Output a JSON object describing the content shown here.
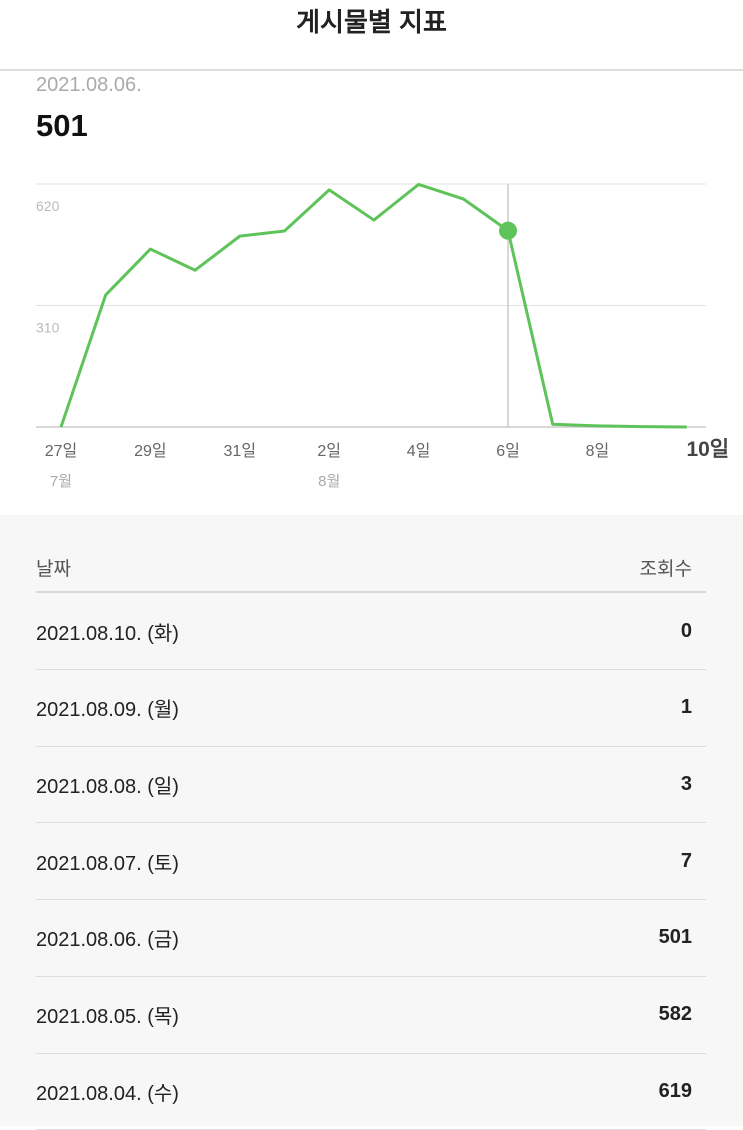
{
  "header": {
    "title": "게시물별 지표"
  },
  "selected": {
    "date": "2021.08.06.",
    "value": "501"
  },
  "chart_data": {
    "type": "line",
    "categories": [
      "27일",
      null,
      "29일",
      null,
      "31일",
      null,
      "2일",
      null,
      "4일",
      null,
      "6일",
      null,
      "8일",
      null,
      "10일"
    ],
    "month_labels": [
      "7월",
      null,
      null,
      null,
      null,
      null,
      "8월",
      null,
      null,
      null,
      null,
      null,
      null,
      null,
      null
    ],
    "values": [
      0,
      337,
      454,
      400,
      487,
      500,
      605,
      528,
      619,
      582,
      501,
      7,
      3,
      1,
      0
    ],
    "color": "#5ec45a",
    "highlight_index": 10,
    "ylim": [
      0,
      620
    ],
    "yticks": [
      310,
      620
    ],
    "grid": true
  },
  "table": {
    "header": [
      "날짜",
      "조회수"
    ],
    "rows": [
      [
        "2021.08.10. (화)",
        "0"
      ],
      [
        "2021.08.09. (월)",
        "1"
      ],
      [
        "2021.08.08. (일)",
        "3"
      ],
      [
        "2021.08.07. (토)",
        "7"
      ],
      [
        "2021.08.06. (금)",
        "501"
      ],
      [
        "2021.08.05. (목)",
        "582"
      ],
      [
        "2021.08.04. (수)",
        "619"
      ]
    ]
  }
}
